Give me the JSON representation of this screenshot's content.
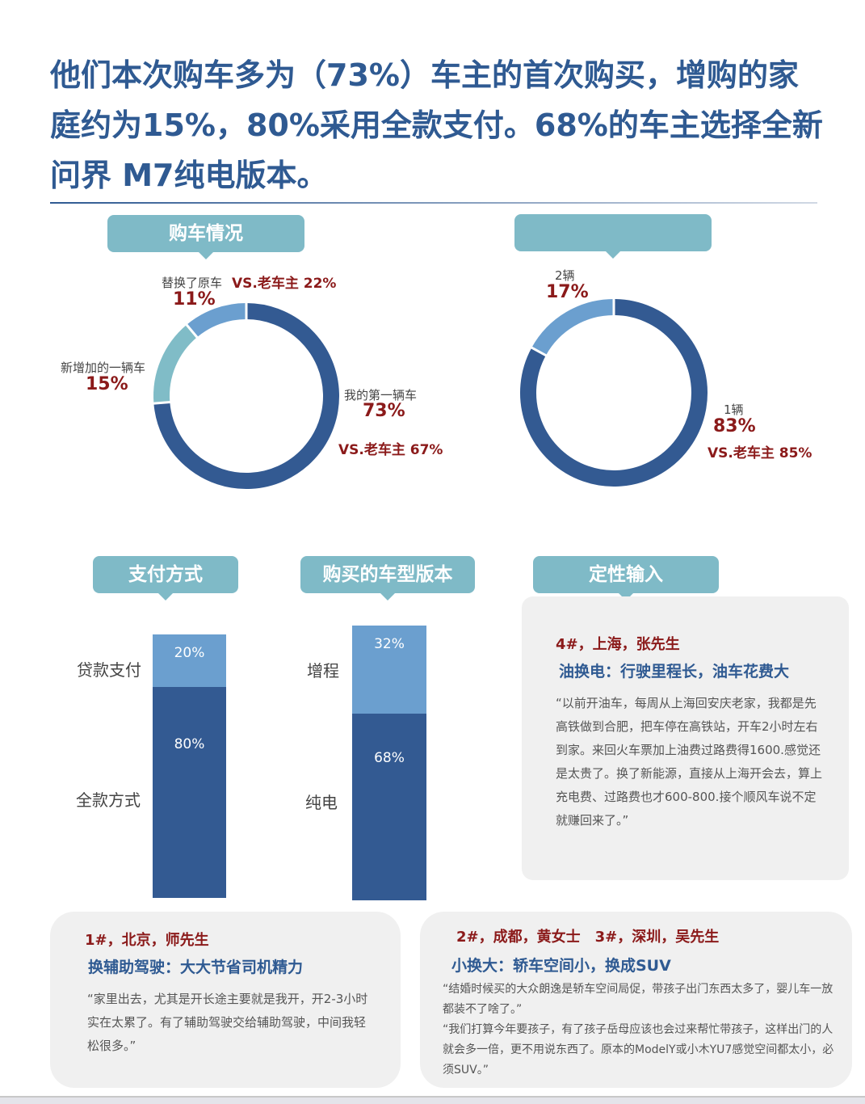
{
  "title": "他们本次购车多为（73%）车主的首次购买，增购的家庭约为15%，80%采用全款支付。68%的车主选择全新问界 M7纯电版本。",
  "tabs": {
    "purchase": "购车情况",
    "second": "",
    "payment": "支付方式",
    "version": "购买的车型版本",
    "qualitative": "定性输入"
  },
  "colors": {
    "dark": "#335a92",
    "light": "#6b9fcf",
    "teal": "#80bcc7",
    "red": "#8b1a1a"
  },
  "chart_data": [
    {
      "type": "pie",
      "donut": true,
      "slices": [
        {
          "label": "我的第一辆车",
          "value": 73,
          "pct": "73%",
          "vs": "VS.老车主 67%"
        },
        {
          "label": "新增加的一辆车",
          "value": 15,
          "pct": "15%"
        },
        {
          "label": "替换了原车",
          "value": 11,
          "pct": "11%",
          "vs": "VS.老车主 22%"
        }
      ]
    },
    {
      "type": "pie",
      "donut": true,
      "slices": [
        {
          "label": "1辆",
          "value": 83,
          "pct": "83%",
          "vs": "VS.老车主 85%"
        },
        {
          "label": "2辆",
          "value": 17,
          "pct": "17%"
        }
      ]
    },
    {
      "type": "bar",
      "stacked": true,
      "categories": [
        "贷款支付",
        "全款方式"
      ],
      "values": [
        20,
        80
      ],
      "labels": [
        "20%",
        "80%"
      ]
    },
    {
      "type": "bar",
      "stacked": true,
      "categories": [
        "增程",
        "纯电"
      ],
      "values": [
        32,
        68
      ],
      "labels": [
        "32%",
        "68%"
      ]
    }
  ],
  "cards": [
    {
      "who": "4#，上海，张先生",
      "head": "油换电：行驶里程长，油车花费大",
      "quote": "“以前开油车，每周从上海回安庆老家，我都是先高铁做到合肥，把车停在高铁站，开车2小时左右到家。来回火车票加上油费过路费得1600.感觉还是太贵了。换了新能源，直接从上海开会去，算上充电费、过路费也才600-800.接个顺风车说不定就赚回来了。”"
    },
    {
      "who": "1#，北京，师先生",
      "head": "换辅助驾驶：大大节省司机精力",
      "quote": "“家里出去，尤其是开长途主要就是我开，开2-3小时实在太累了。有了辅助驾驶交给辅助驾驶，中间我轻松很多。”"
    },
    {
      "who": "2#，成都，黄女士　3#，深圳，吴先生",
      "head": "小换大：轿车空间小，换成SUV",
      "quote": "“结婚时候买的大众朗逸是轿车空间局促，带孩子出门东西太多了，婴儿车一放都装不了啥了。”",
      "quote2": "“我们打算今年要孩子，有了孩子岳母应该也会过来帮忙带孩子，这样出门的人就会多一倍，更不用说东西了。原本的ModelY或小木YU7感觉空间都太小，必须SUV。”"
    }
  ]
}
